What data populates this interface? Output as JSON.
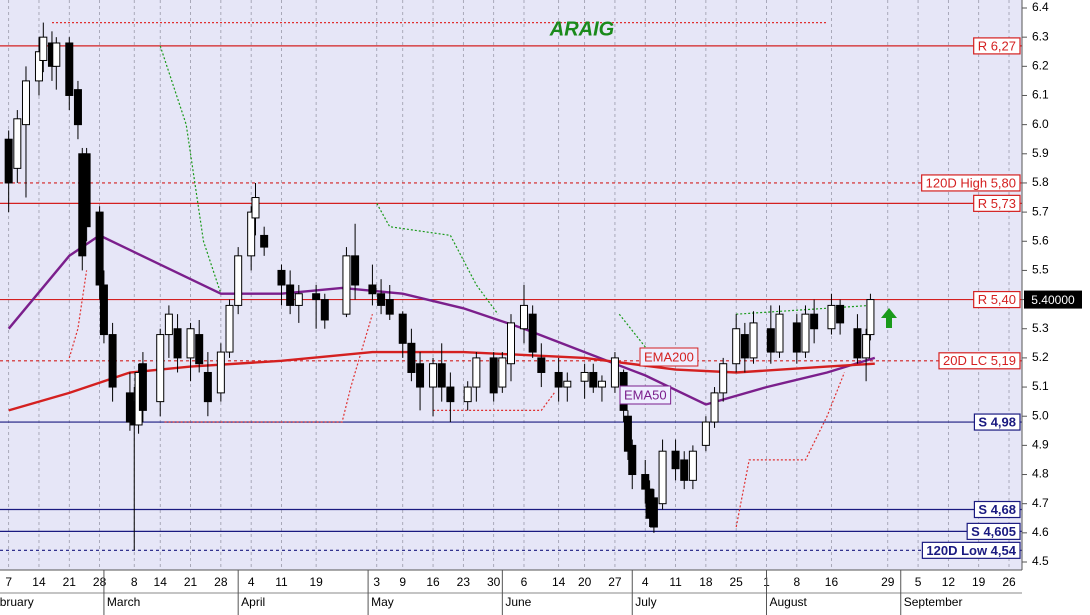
{
  "chart_data": {
    "type": "candlestick",
    "title": "ARAIG",
    "xlim": [
      "02-05",
      "09-29"
    ],
    "ylim": [
      4.5,
      6.4
    ],
    "yticks": [
      4.5,
      4.6,
      4.7,
      4.8,
      4.9,
      {
        "value": 5,
        "label": "5.0"
      },
      5.1,
      5.2,
      5.3,
      5.4,
      5.5,
      5.6,
      5.7,
      5.8,
      5.9,
      {
        "value": 6,
        "label": "6.0"
      },
      6.1,
      6.2,
      6.3,
      6.4
    ],
    "xticks": [
      {
        "value": "02-07",
        "label": "7"
      },
      {
        "value": "02-14",
        "label": "14"
      },
      {
        "value": "02-21",
        "label": "21"
      },
      {
        "value": "02-28",
        "label": "28"
      },
      {
        "value": "03-08",
        "label": "8"
      },
      {
        "value": "03-14",
        "label": "14"
      },
      {
        "value": "03-21",
        "label": "21"
      },
      {
        "value": "03-28",
        "label": "28"
      },
      {
        "value": "04-04",
        "label": "4"
      },
      {
        "value": "04-11",
        "label": "11"
      },
      {
        "value": "04-19",
        "label": "19"
      },
      {
        "value": "05-03",
        "label": "3"
      },
      {
        "value": "05-09",
        "label": "9"
      },
      {
        "value": "05-16",
        "label": "16"
      },
      {
        "value": "05-23",
        "label": "23"
      },
      {
        "value": "05-30",
        "label": "30"
      },
      {
        "value": "06-06",
        "label": "6"
      },
      {
        "value": "06-14",
        "label": "14"
      },
      {
        "value": "06-20",
        "label": "20"
      },
      {
        "value": "06-27",
        "label": "27"
      },
      {
        "value": "07-04",
        "label": "4"
      },
      {
        "value": "07-11",
        "label": "11"
      },
      {
        "value": "07-18",
        "label": "18"
      },
      {
        "value": "07-25",
        "label": "25"
      },
      {
        "value": "08-01",
        "label": "1"
      },
      {
        "value": "08-08",
        "label": "8"
      },
      {
        "value": "08-16",
        "label": "16"
      },
      {
        "value": "08-29",
        "label": "29"
      },
      {
        "value": "09-05",
        "label": "5"
      },
      {
        "value": "09-12",
        "label": "12"
      },
      {
        "value": "09-19",
        "label": "19"
      },
      {
        "value": "09-26",
        "label": "26"
      }
    ],
    "months": [
      {
        "value": "02-01",
        "label": "February"
      },
      {
        "value": "03-01",
        "label": "March"
      },
      {
        "value": "04-01",
        "label": "April"
      },
      {
        "value": "05-01",
        "label": "May"
      },
      {
        "value": "06-01",
        "label": "June"
      },
      {
        "value": "07-01",
        "label": "July"
      },
      {
        "value": "08-01",
        "label": "August"
      },
      {
        "value": "09-01",
        "label": "September"
      }
    ],
    "grid": true,
    "x": [
      "02-07",
      "02-09",
      "02-11",
      "02-14",
      "02-15",
      "02-17",
      "02-18",
      "02-21",
      "02-23",
      "02-24",
      "02-25",
      "02-28",
      "03-01",
      "03-03",
      "03-07",
      "03-08",
      "03-09",
      "03-10",
      "03-14",
      "03-16",
      "03-18",
      "03-21",
      "03-23",
      "03-25",
      "03-28",
      "03-30",
      "04-01",
      "04-04",
      "04-05",
      "04-07",
      "04-11",
      "04-13",
      "04-15",
      "04-19",
      "04-21",
      "04-26",
      "04-28",
      "05-02",
      "05-04",
      "05-06",
      "05-09",
      "05-11",
      "05-13",
      "05-16",
      "05-18",
      "05-20",
      "05-24",
      "05-26",
      "05-30",
      "06-01",
      "06-03",
      "06-06",
      "06-08",
      "06-10",
      "06-14",
      "06-16",
      "06-20",
      "06-22",
      "06-24",
      "06-27",
      "06-29",
      "06-30",
      "07-01",
      "07-04",
      "07-05",
      "07-06",
      "07-08",
      "07-11",
      "07-13",
      "07-15",
      "07-18",
      "07-20",
      "07-22",
      "07-25",
      "07-27",
      "07-29",
      "08-02",
      "08-04",
      "08-08",
      "08-10",
      "08-12",
      "08-16",
      "08-18",
      "08-22",
      "08-24",
      "08-25"
    ],
    "ohlc": [
      [
        5.95,
        5.98,
        5.7,
        5.8
      ],
      [
        5.85,
        6.05,
        5.8,
        6.02
      ],
      [
        6.0,
        6.2,
        5.75,
        6.15
      ],
      [
        6.15,
        6.3,
        6.1,
        6.25
      ],
      [
        6.22,
        6.35,
        6.18,
        6.3
      ],
      [
        6.28,
        6.32,
        6.15,
        6.2
      ],
      [
        6.2,
        6.3,
        6.12,
        6.28
      ],
      [
        6.28,
        6.3,
        6.05,
        6.1
      ],
      [
        6.12,
        6.15,
        5.95,
        6.0
      ],
      [
        5.9,
        5.92,
        5.5,
        5.55
      ],
      [
        5.9,
        5.92,
        5.6,
        5.65
      ],
      [
        5.7,
        5.72,
        5.4,
        5.45
      ],
      [
        5.45,
        5.5,
        5.25,
        5.28
      ],
      [
        5.28,
        5.32,
        5.05,
        5.1
      ],
      [
        5.08,
        5.15,
        4.95,
        4.98
      ],
      [
        5.05,
        5.1,
        4.54,
        4.97
      ],
      [
        4.97,
        5.18,
        4.94,
        5.15
      ],
      [
        5.18,
        5.22,
        4.98,
        5.02
      ],
      [
        5.05,
        5.3,
        5.0,
        5.28
      ],
      [
        5.28,
        5.38,
        5.2,
        5.35
      ],
      [
        5.3,
        5.35,
        5.15,
        5.2
      ],
      [
        5.2,
        5.32,
        5.12,
        5.3
      ],
      [
        5.28,
        5.33,
        5.15,
        5.18
      ],
      [
        5.15,
        5.22,
        5.0,
        5.05
      ],
      [
        5.08,
        5.25,
        5.05,
        5.22
      ],
      [
        5.22,
        5.4,
        5.2,
        5.38
      ],
      [
        5.38,
        5.58,
        5.35,
        5.55
      ],
      [
        5.55,
        5.72,
        5.5,
        5.7
      ],
      [
        5.68,
        5.8,
        5.62,
        5.75
      ],
      [
        5.62,
        5.65,
        5.55,
        5.58
      ],
      [
        5.5,
        5.52,
        5.38,
        5.45
      ],
      [
        5.45,
        5.5,
        5.35,
        5.38
      ],
      [
        5.38,
        5.45,
        5.32,
        5.42
      ],
      [
        5.42,
        5.45,
        5.3,
        5.4
      ],
      [
        5.4,
        5.42,
        5.3,
        5.33
      ],
      [
        5.35,
        5.58,
        5.34,
        5.55
      ],
      [
        5.55,
        5.66,
        5.4,
        5.45
      ],
      [
        5.45,
        5.52,
        5.38,
        5.42
      ],
      [
        5.42,
        5.47,
        5.35,
        5.38
      ],
      [
        5.4,
        5.45,
        5.33,
        5.35
      ],
      [
        5.35,
        5.36,
        5.2,
        5.25
      ],
      [
        5.25,
        5.3,
        5.12,
        5.15
      ],
      [
        5.18,
        5.22,
        5.02,
        5.1
      ],
      [
        5.1,
        5.2,
        5.0,
        5.18
      ],
      [
        5.18,
        5.25,
        5.05,
        5.1
      ],
      [
        5.1,
        5.15,
        4.98,
        5.05
      ],
      [
        5.05,
        5.12,
        5.02,
        5.1
      ],
      [
        5.1,
        5.22,
        5.05,
        5.2
      ],
      [
        5.2,
        5.22,
        5.05,
        5.08
      ],
      [
        5.1,
        5.22,
        5.08,
        5.2
      ],
      [
        5.18,
        5.35,
        5.12,
        5.32
      ],
      [
        5.3,
        5.45,
        5.25,
        5.38
      ],
      [
        5.35,
        5.38,
        5.2,
        5.22
      ],
      [
        5.2,
        5.25,
        5.1,
        5.15
      ],
      [
        5.15,
        5.2,
        5.05,
        5.1
      ],
      [
        5.1,
        5.15,
        5.05,
        5.12
      ],
      [
        5.12,
        5.18,
        5.06,
        5.15
      ],
      [
        5.15,
        5.18,
        5.08,
        5.1
      ],
      [
        5.1,
        5.14,
        5.05,
        5.12
      ],
      [
        5.1,
        5.22,
        5.08,
        5.2
      ],
      [
        5.15,
        5.16,
        4.98,
        5.02
      ],
      [
        5.0,
        5.02,
        4.85,
        4.88
      ],
      [
        4.9,
        4.92,
        4.75,
        4.8
      ],
      [
        4.8,
        4.85,
        4.7,
        4.75
      ],
      [
        4.75,
        4.78,
        4.62,
        4.65
      ],
      [
        4.72,
        4.75,
        4.6,
        4.62
      ],
      [
        4.7,
        4.92,
        4.68,
        4.88
      ],
      [
        4.88,
        4.92,
        4.78,
        4.82
      ],
      [
        4.85,
        4.88,
        4.75,
        4.78
      ],
      [
        4.78,
        4.9,
        4.75,
        4.88
      ],
      [
        4.9,
        5.0,
        4.88,
        4.98
      ],
      [
        4.98,
        5.1,
        4.96,
        5.08
      ],
      [
        5.08,
        5.2,
        5.05,
        5.18
      ],
      [
        5.18,
        5.35,
        5.15,
        5.3
      ],
      [
        5.28,
        5.32,
        5.15,
        5.2
      ],
      [
        5.2,
        5.36,
        5.18,
        5.32
      ],
      [
        5.3,
        5.38,
        5.18,
        5.22
      ],
      [
        5.22,
        5.38,
        5.2,
        5.35
      ],
      [
        5.32,
        5.35,
        5.18,
        5.22
      ],
      [
        5.22,
        5.38,
        5.2,
        5.35
      ],
      [
        5.35,
        5.4,
        5.25,
        5.3
      ],
      [
        5.3,
        5.42,
        5.28,
        5.38
      ],
      [
        5.38,
        5.4,
        5.28,
        5.32
      ],
      [
        5.3,
        5.35,
        5.18,
        5.2
      ],
      [
        5.2,
        5.3,
        5.12,
        5.28
      ],
      [
        5.28,
        5.42,
        5.26,
        5.4
      ]
    ],
    "series": [
      {
        "name": "EMA50",
        "color": "#7b1f8c",
        "x": [
          "02-07",
          "02-21",
          "02-28",
          "03-14",
          "03-28",
          "04-11",
          "04-25",
          "05-09",
          "05-23",
          "06-06",
          "06-20",
          "07-04",
          "07-18",
          "08-01",
          "08-15",
          "08-26"
        ],
        "values": [
          5.3,
          5.55,
          5.62,
          5.52,
          5.42,
          5.42,
          5.44,
          5.42,
          5.37,
          5.3,
          5.22,
          5.14,
          5.04,
          5.1,
          5.15,
          5.2
        ]
      },
      {
        "name": "EMA200",
        "color": "#d42020",
        "x": [
          "02-07",
          "02-21",
          "03-07",
          "03-21",
          "04-11",
          "05-02",
          "05-23",
          "06-20",
          "07-11",
          "07-25",
          "08-15",
          "08-26"
        ],
        "values": [
          5.02,
          5.08,
          5.15,
          5.17,
          5.19,
          5.22,
          5.22,
          5.2,
          5.16,
          5.15,
          5.17,
          5.18
        ]
      }
    ],
    "stops": [
      {
        "color": "#1a9a1a",
        "x": [
          "03-14",
          "03-20",
          "03-24",
          "03-28",
          "04-01",
          "05-03",
          "05-06",
          "05-20",
          "05-26",
          "05-31",
          "06-02",
          "06-28",
          "07-06",
          "07-13",
          "07-25",
          "08-25"
        ],
        "values": [
          6.27,
          6.0,
          5.6,
          5.42,
          null,
          5.73,
          5.65,
          5.62,
          5.45,
          5.35,
          null,
          5.35,
          5.2,
          null,
          5.35,
          5.38
        ]
      },
      {
        "color": "#e03030",
        "x": [
          "02-21",
          "02-23",
          "02-25",
          "03-01",
          "03-15",
          "04-25",
          "04-27",
          "05-02",
          "05-09",
          "05-16",
          "06-10",
          "06-13",
          "06-16",
          "07-25",
          "07-28",
          "08-10",
          "08-15",
          "08-19"
        ],
        "values": [
          5.2,
          5.3,
          5.5,
          null,
          4.98,
          4.98,
          5.1,
          5.35,
          null,
          5.02,
          5.02,
          5.08,
          null,
          4.62,
          4.85,
          4.85,
          5.0,
          5.15
        ]
      },
      {
        "color": "#e03030",
        "x": [
          "02-17",
          "08-15"
        ],
        "values": [
          6.35,
          6.35
        ]
      }
    ],
    "levels": [
      {
        "value": 6.27,
        "label": "R 6,27",
        "color": "#d42020",
        "style": "solid"
      },
      {
        "value": 5.8,
        "label": "120D High 5,80",
        "color": "#d42020",
        "style": "dashed"
      },
      {
        "value": 5.73,
        "label": "R 5,73",
        "color": "#d42020",
        "style": "solid"
      },
      {
        "value": 5.4,
        "label": "R 5,40",
        "color": "#d42020",
        "style": "solid"
      },
      {
        "value": 5.19,
        "label": "20D LC 5,19",
        "color": "#d42020",
        "style": "dashed"
      },
      {
        "value": 4.98,
        "label": "S 4,98",
        "color": "#1a1a80",
        "style": "solid"
      },
      {
        "value": 4.68,
        "label": "S 4,68",
        "color": "#1a1a80",
        "style": "solid"
      },
      {
        "value": 4.605,
        "label": "S 4,605",
        "color": "#1a1a80",
        "style": "solid"
      },
      {
        "value": 4.54,
        "label": "120D Low 4,54",
        "color": "#1a1a80",
        "style": "dashed"
      }
    ],
    "last": {
      "value": 5.4,
      "label": "5.40000"
    }
  }
}
